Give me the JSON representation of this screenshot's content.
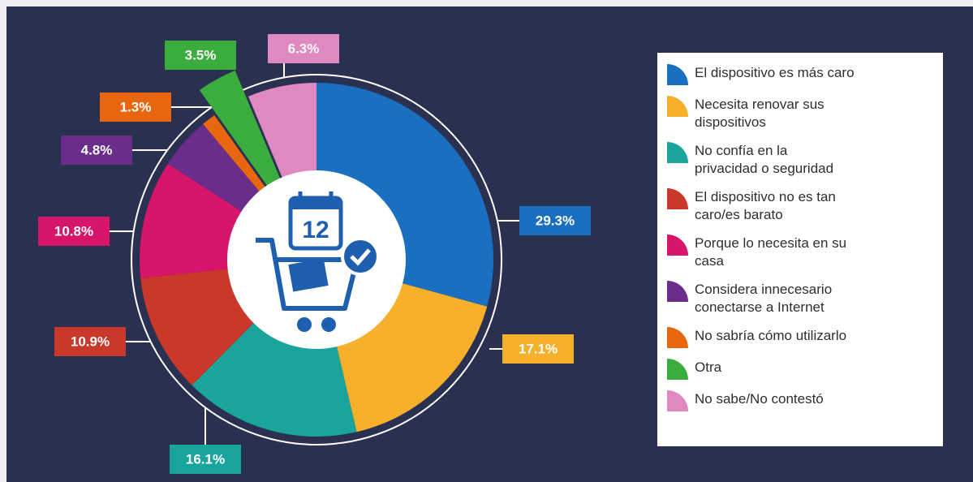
{
  "chart_data": {
    "type": "pie",
    "center_label": "12",
    "categories": [
      "El dispositivo es más caro",
      "Necesita renovar sus dispositivos",
      "No confía en la privacidad o seguridad",
      "El dispositivo no es tan caro/es barato",
      "Porque lo necesita en su casa",
      "Considera innecesario conectarse a Internet",
      "No sabría cómo utilizarlo",
      "Otra",
      "No sabe/No contestó"
    ],
    "values": [
      29.3,
      17.1,
      16.1,
      10.9,
      10.8,
      4.8,
      1.3,
      3.5,
      6.3
    ],
    "value_labels": [
      "29.3%",
      "17.1%",
      "16.1%",
      "10.9%",
      "10.8%",
      "4.8%",
      "1.3%",
      "3.5%",
      "6.3%"
    ],
    "colors": [
      "#1a6fc0",
      "#f6b02b",
      "#1aa59c",
      "#c9382a",
      "#d6156b",
      "#6a2d8a",
      "#e8660f",
      "#3aad3e",
      "#e088c0"
    ],
    "exploded": [
      7
    ],
    "legend": "right"
  }
}
